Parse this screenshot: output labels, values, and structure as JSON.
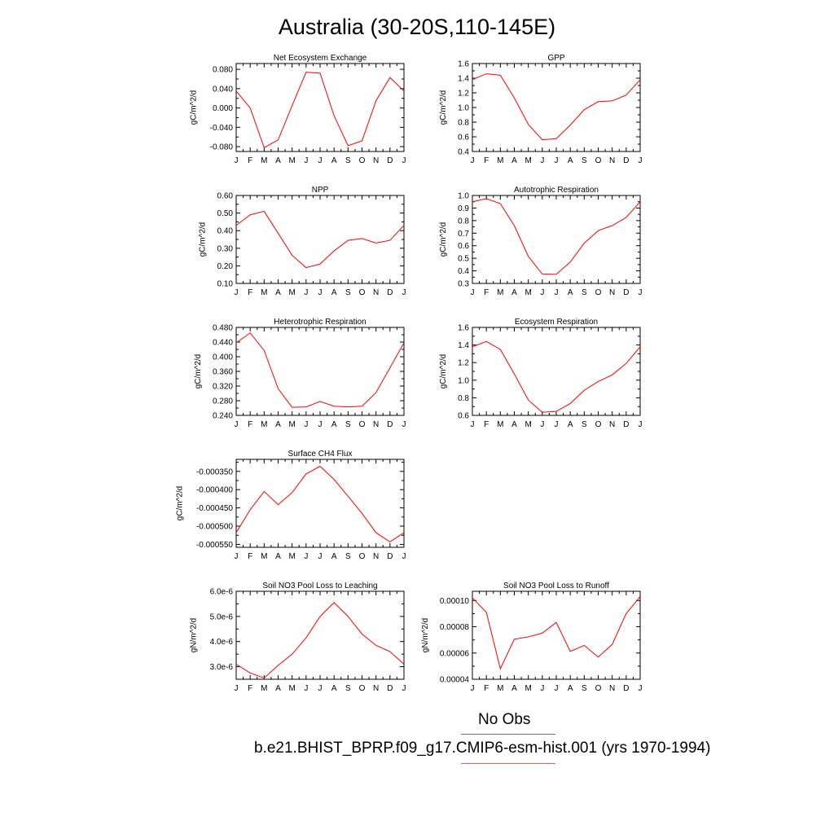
{
  "title": "Australia (30-20S,110-145E)",
  "months": [
    "J",
    "F",
    "M",
    "A",
    "M",
    "J",
    "J",
    "A",
    "S",
    "O",
    "N",
    "D",
    "J"
  ],
  "legend": {
    "obs_label": "No Obs",
    "obs_color": "#6b6bdc",
    "model_label": "b.e21.BHIST_BPRP.f09_g17.CMIP6-esm-hist.001 (yrs 1970-1994)",
    "model_color": "#ff5a5a"
  },
  "line_color": "#ff0000",
  "chart_data": [
    {
      "type": "line",
      "title": "Net Ecosystem Exchange",
      "ylabel": "gC/m^2/d",
      "ylim": [
        -0.09,
        0.092
      ],
      "yticks": [
        "0.080",
        "0.040",
        "0.000",
        "-0.040",
        "-0.080"
      ],
      "ytick_values": [
        0.08,
        0.04,
        0.0,
        -0.04,
        -0.08
      ],
      "values": [
        0.035,
        0.0,
        -0.082,
        -0.066,
        0.005,
        0.074,
        0.072,
        -0.016,
        -0.078,
        -0.068,
        0.015,
        0.063,
        0.035
      ]
    },
    {
      "type": "line",
      "title": "GPP",
      "ylabel": "gC/m^2/d",
      "ylim": [
        0.4,
        1.6
      ],
      "yticks": [
        "1.6",
        "1.4",
        "1.2",
        "1.0",
        "0.8",
        "0.6",
        "0.4"
      ],
      "ytick_values": [
        1.6,
        1.4,
        1.2,
        1.0,
        0.8,
        0.6,
        0.4
      ],
      "values": [
        1.38,
        1.46,
        1.44,
        1.13,
        0.77,
        0.56,
        0.575,
        0.76,
        0.97,
        1.08,
        1.09,
        1.17,
        1.38
      ]
    },
    {
      "type": "line",
      "title": "NPP",
      "ylabel": "gC/m^2/d",
      "ylim": [
        0.1,
        0.6
      ],
      "yticks": [
        "0.60",
        "0.50",
        "0.40",
        "0.30",
        "0.20",
        "0.10"
      ],
      "ytick_values": [
        0.6,
        0.5,
        0.4,
        0.3,
        0.2,
        0.1
      ],
      "values": [
        0.43,
        0.49,
        0.51,
        0.385,
        0.26,
        0.19,
        0.21,
        0.285,
        0.345,
        0.355,
        0.33,
        0.345,
        0.43
      ]
    },
    {
      "type": "line",
      "title": "Autotrophic Respiration",
      "ylabel": "gC/m^2/d",
      "ylim": [
        0.3,
        1.0
      ],
      "yticks": [
        "1.0",
        "0.9",
        "0.8",
        "0.7",
        "0.6",
        "0.5",
        "0.4",
        "0.3"
      ],
      "ytick_values": [
        1.0,
        0.9,
        0.8,
        0.7,
        0.6,
        0.5,
        0.4,
        0.3
      ],
      "values": [
        0.95,
        0.975,
        0.935,
        0.76,
        0.515,
        0.375,
        0.372,
        0.47,
        0.62,
        0.72,
        0.76,
        0.825,
        0.95
      ]
    },
    {
      "type": "line",
      "title": "Heterotrophic Respiration",
      "ylabel": "gC/m^2/d",
      "ylim": [
        0.24,
        0.48
      ],
      "yticks": [
        "0.480",
        "0.440",
        "0.400",
        "0.360",
        "0.320",
        "0.280",
        "0.240"
      ],
      "ytick_values": [
        0.48,
        0.44,
        0.4,
        0.36,
        0.32,
        0.28,
        0.24
      ],
      "values": [
        0.438,
        0.465,
        0.417,
        0.313,
        0.262,
        0.263,
        0.278,
        0.265,
        0.263,
        0.265,
        0.302,
        0.37,
        0.438
      ]
    },
    {
      "type": "line",
      "title": "Ecosystem Respiration",
      "ylabel": "gC/m^2/d",
      "ylim": [
        0.6,
        1.6
      ],
      "yticks": [
        "1.6",
        "1.4",
        "1.2",
        "1.0",
        "0.8",
        "0.6"
      ],
      "ytick_values": [
        1.6,
        1.4,
        1.2,
        1.0,
        0.8,
        0.6
      ],
      "values": [
        1.38,
        1.44,
        1.35,
        1.07,
        0.775,
        0.635,
        0.645,
        0.735,
        0.885,
        0.985,
        1.06,
        1.19,
        1.38
      ]
    },
    {
      "type": "line",
      "title": "Surface CH4 Flux",
      "ylabel": "gC/m^2/d",
      "ylim": [
        -0.000558,
        -0.000317
      ],
      "yticks": [
        "-0.000350",
        "-0.000400",
        "-0.000450",
        "-0.000500",
        "-0.000550"
      ],
      "ytick_values": [
        -0.00035,
        -0.0004,
        -0.00045,
        -0.0005,
        -0.00055
      ],
      "values": [
        -0.000518,
        -0.000455,
        -0.000405,
        -0.000441,
        -0.000408,
        -0.000357,
        -0.000336,
        -0.000372,
        -0.000418,
        -0.000465,
        -0.000518,
        -0.000543,
        -0.000518
      ]
    },
    {
      "type": "line",
      "title": "Soil NO3 Pool Loss to Leaching",
      "ylabel": "gN/m^2/d",
      "ylim": [
        2.5e-06,
        6e-06
      ],
      "yticks": [
        "6.0e-6",
        "5.0e-6",
        "4.0e-6",
        "3.0e-6"
      ],
      "ytick_values": [
        6e-06,
        5e-06,
        4e-06,
        3e-06
      ],
      "values": [
        3.1e-06,
        2.75e-06,
        2.55e-06,
        3.05e-06,
        3.5e-06,
        4.15e-06,
        5e-06,
        5.55e-06,
        5e-06,
        4.3e-06,
        3.85e-06,
        3.6e-06,
        3.1e-06
      ]
    },
    {
      "type": "line",
      "title": "Soil NO3 Pool Loss to Runoff",
      "ylabel": "gN/m^2/d",
      "ylim": [
        4e-05,
        0.000107
      ],
      "yticks": [
        "0.00010",
        "0.00008",
        "0.00006",
        "0.00004"
      ],
      "ytick_values": [
        0.0001,
        8e-05,
        6e-05,
        4e-05
      ],
      "values": [
        0.000102,
        9.1e-05,
        4.8e-05,
        7.05e-05,
        7.23e-05,
        7.51e-05,
        8.33e-05,
        6.12e-05,
        6.58e-05,
        5.69e-05,
        6.65e-05,
        9e-05,
        0.000103
      ]
    }
  ]
}
